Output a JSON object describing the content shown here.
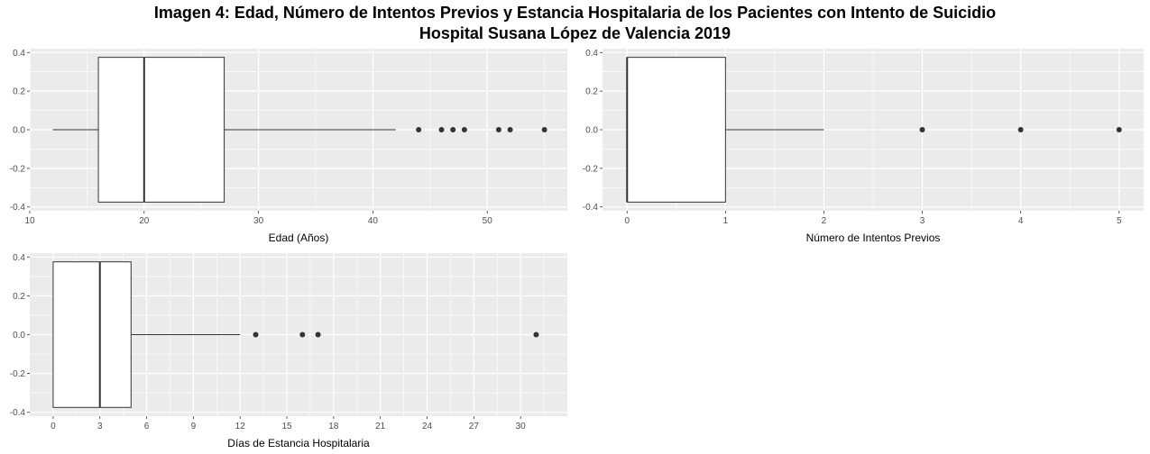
{
  "title": {
    "line1": "Imagen 4: Edad, Número de Intentos Previos y Estancia Hospitalaria de los Pacientes con Intento de Suicidio",
    "line2": "Hospital Susana López de Valencia 2019"
  },
  "colors": {
    "panel_bg": "#ebebeb",
    "grid": "#ffffff",
    "box_fill": "#ffffff",
    "line": "#333333",
    "tick_text": "#4d4d4d"
  },
  "chart_data": [
    {
      "type": "boxplot",
      "xlabel": "Edad (Años)",
      "ylabel": "",
      "xlim": [
        10,
        57
      ],
      "ylim": [
        -0.4,
        0.4
      ],
      "x_ticks": [
        10,
        20,
        30,
        40,
        50
      ],
      "x_tick_labels": [
        "10",
        "20",
        "30",
        "40",
        "50"
      ],
      "y_ticks": [
        -0.4,
        -0.2,
        0.0,
        0.2,
        0.4
      ],
      "y_tick_labels": [
        "-0.4",
        "-0.2",
        "0.0",
        "0.2",
        "0.4"
      ],
      "box": {
        "whisker_low": 12,
        "q1": 16,
        "median": 20,
        "q3": 27,
        "whisker_high": 42,
        "width_low": -0.375,
        "width_high": 0.375
      },
      "outliers": [
        44,
        46,
        47,
        48,
        51,
        52,
        55
      ],
      "grid": true
    },
    {
      "type": "boxplot",
      "xlabel": "Número de Intentos Previos",
      "ylabel": "",
      "xlim": [
        -0.25,
        5.25
      ],
      "ylim": [
        -0.4,
        0.4
      ],
      "x_ticks": [
        0,
        1,
        2,
        3,
        4,
        5
      ],
      "x_tick_labels": [
        "0",
        "1",
        "2",
        "3",
        "4",
        "5"
      ],
      "y_ticks": [
        -0.4,
        -0.2,
        0.0,
        0.2,
        0.4
      ],
      "y_tick_labels": [
        "-0.4",
        "-0.2",
        "0.0",
        "0.2",
        "0.4"
      ],
      "box": {
        "whisker_low": 0,
        "q1": 0,
        "median": 0,
        "q3": 1,
        "whisker_high": 2,
        "width_low": -0.375,
        "width_high": 0.375
      },
      "outliers": [
        3,
        4,
        5
      ],
      "grid": true
    },
    {
      "type": "boxplot",
      "xlabel": "Días de Estancia Hospitalaria",
      "ylabel": "",
      "xlim": [
        -1.5,
        33
      ],
      "ylim": [
        -0.4,
        0.4
      ],
      "x_ticks": [
        0,
        3,
        6,
        9,
        12,
        15,
        18,
        21,
        24,
        27,
        30
      ],
      "x_tick_labels": [
        "0",
        "3",
        "6",
        "9",
        "12",
        "15",
        "18",
        "21",
        "24",
        "27",
        "30"
      ],
      "y_ticks": [
        -0.4,
        -0.2,
        0.0,
        0.2,
        0.4
      ],
      "y_tick_labels": [
        "-0.4",
        "-0.2",
        "0.0",
        "0.2",
        "0.4"
      ],
      "box": {
        "whisker_low": 0,
        "q1": 0,
        "median": 3,
        "q3": 5,
        "whisker_high": 12,
        "width_low": -0.375,
        "width_high": 0.375
      },
      "outliers": [
        13,
        16,
        17,
        31
      ],
      "grid": true
    }
  ]
}
